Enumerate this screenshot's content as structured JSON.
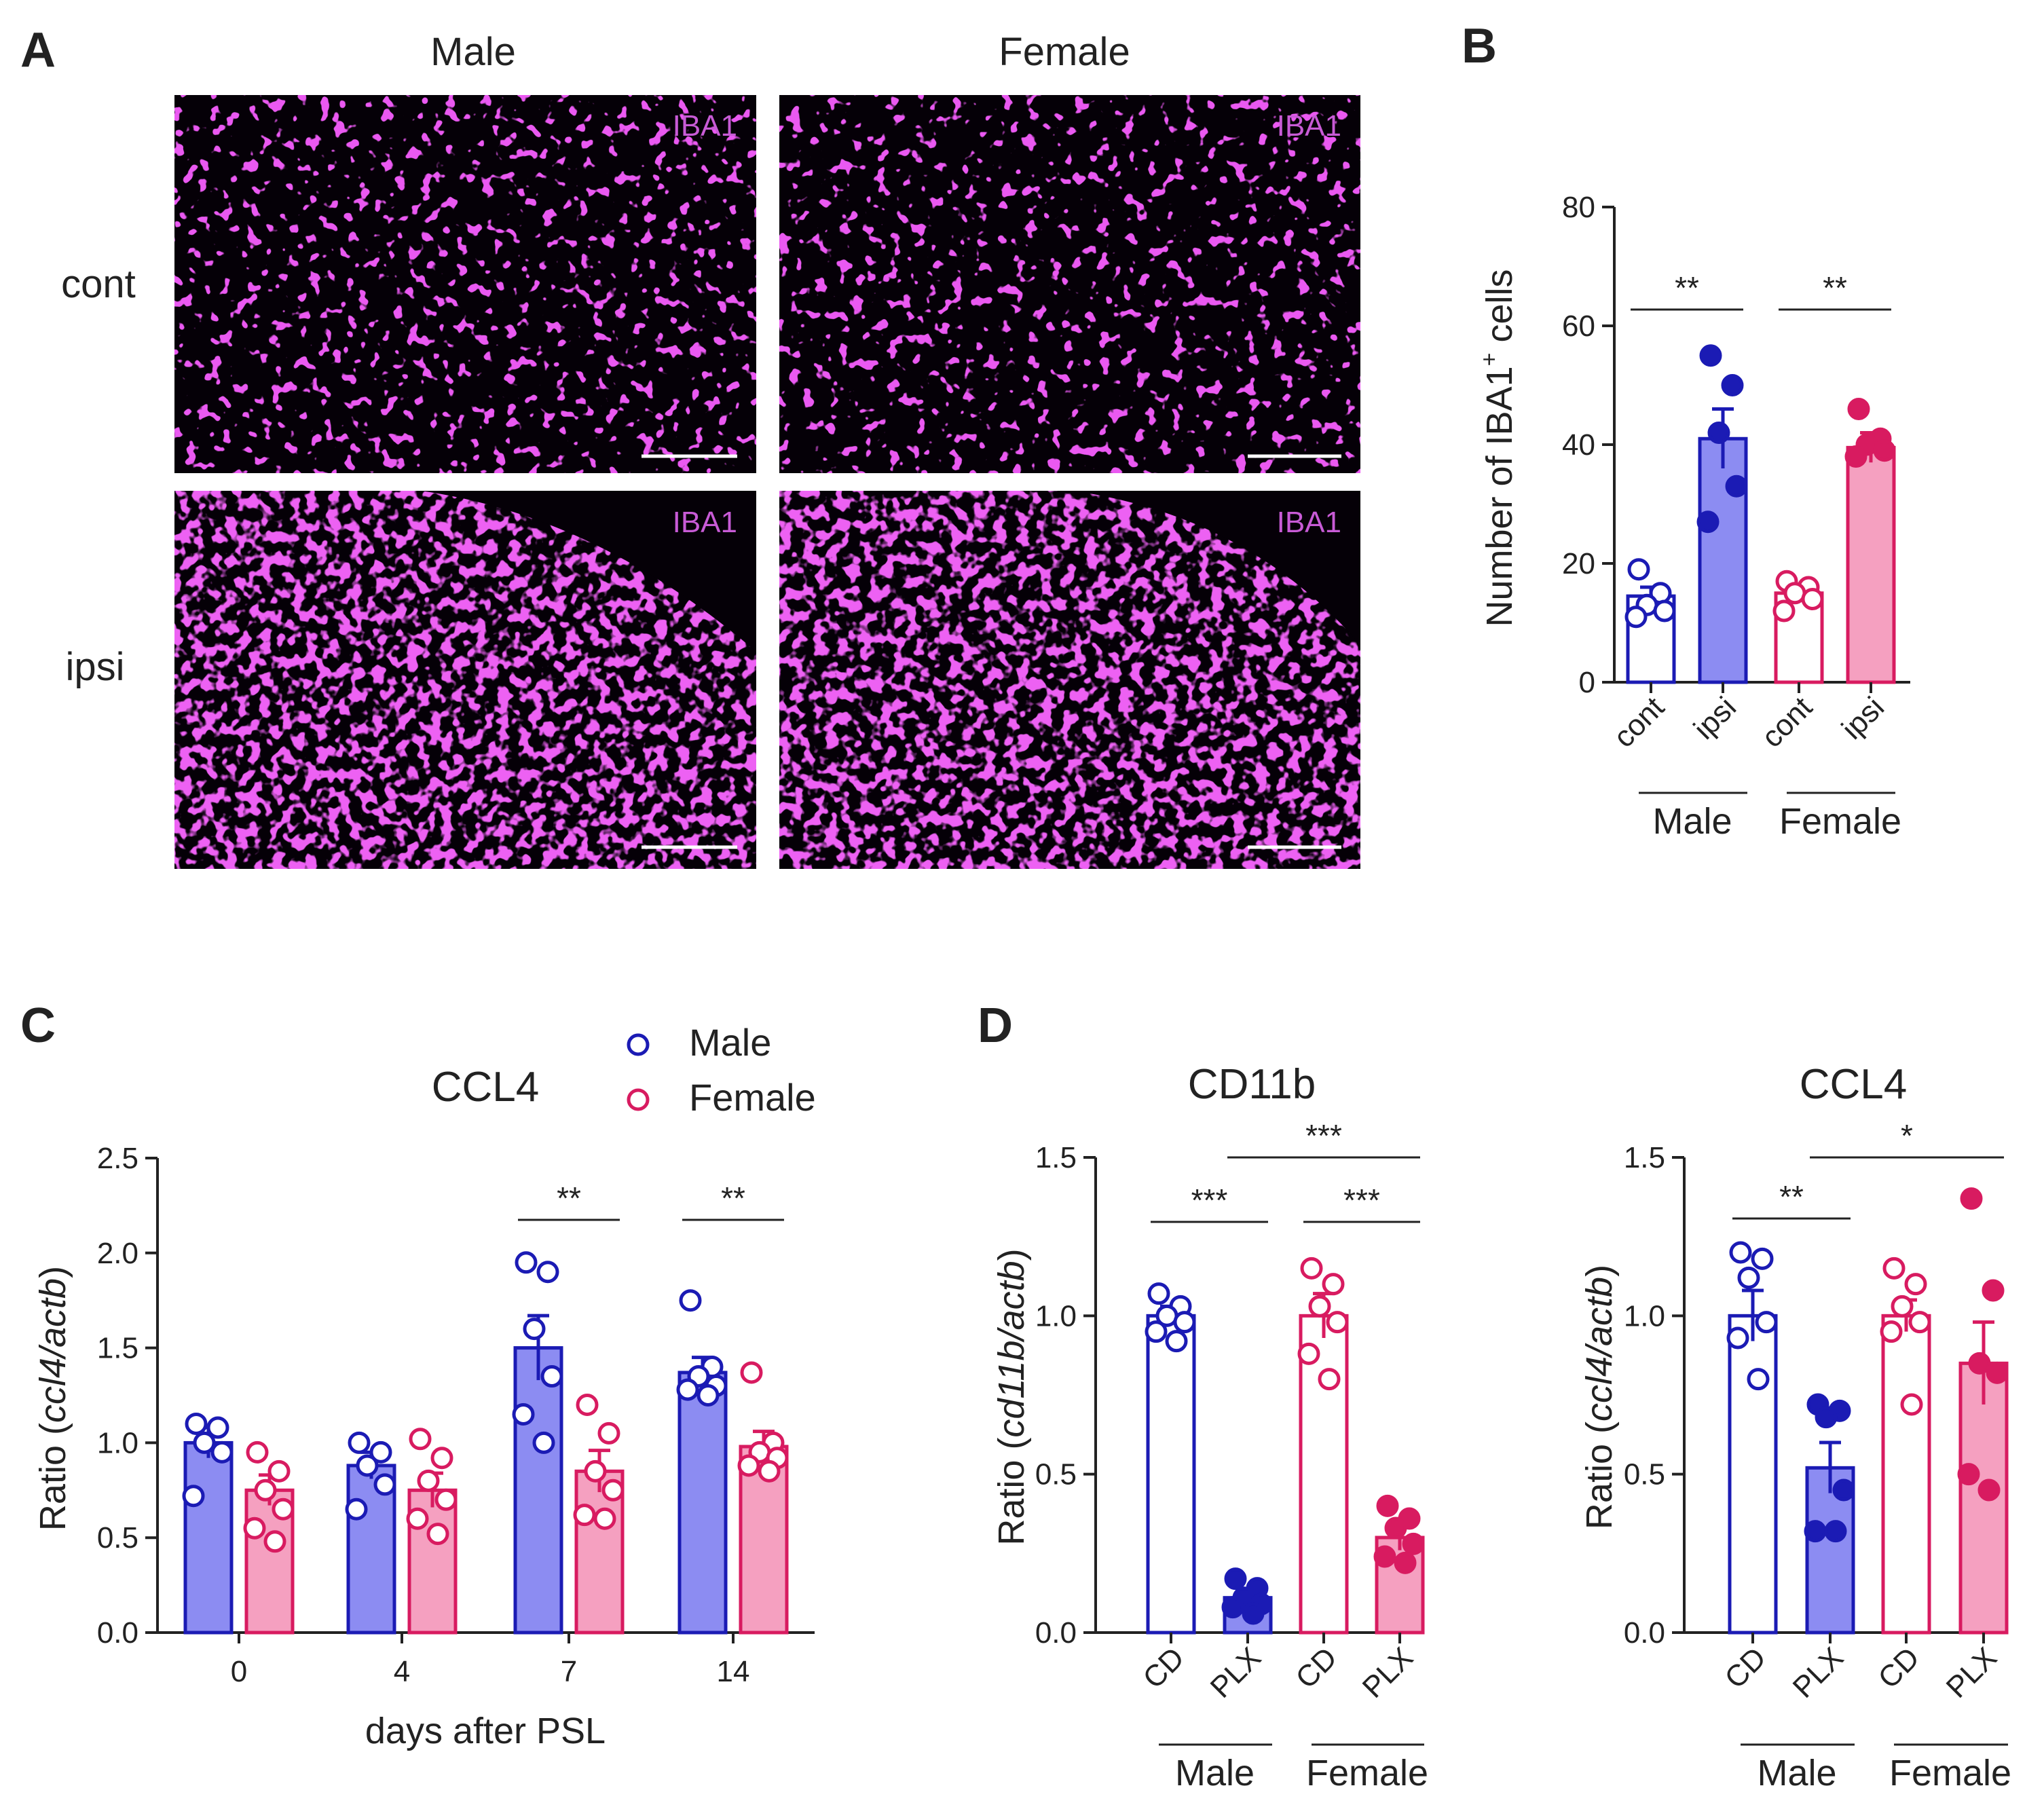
{
  "colors": {
    "male": "#1b1bb4",
    "male_fill": "#8c8cf2",
    "female": "#d81b60",
    "female_fill": "#f5a0c0",
    "image_bg": "#050007",
    "stain": "#c51fd8"
  },
  "panel_a": {
    "letter": "A",
    "columns": [
      "Male",
      "Female"
    ],
    "rows": [
      "cont",
      "ipsi"
    ],
    "stain_label": "IBA1"
  },
  "chart_data": [
    {
      "panel": "B",
      "type": "bar",
      "title": "",
      "ylabel": "Number of IBA1",
      "ylabel_sup": "+",
      "ylabel_suffix": " cells",
      "ylim": [
        0,
        80
      ],
      "yticks": [
        "0",
        "20",
        "40",
        "60",
        "80"
      ],
      "categories": [
        "cont",
        "ipsi",
        "cont",
        "ipsi"
      ],
      "groups": [
        "Male",
        "Female"
      ],
      "values": [
        14.5,
        41,
        15,
        39.5
      ],
      "errors": [
        1.5,
        5,
        1.5,
        2.5
      ],
      "points": [
        [
          19,
          15,
          13,
          12,
          11
        ],
        [
          55,
          50,
          42,
          33,
          27
        ],
        [
          17,
          16,
          15,
          14,
          12
        ],
        [
          46,
          41,
          40,
          39,
          38
        ]
      ],
      "significance": [
        {
          "from": 0,
          "to": 1,
          "label": "**"
        },
        {
          "from": 2,
          "to": 3,
          "label": "**"
        }
      ]
    },
    {
      "panel": "C",
      "type": "bar",
      "title": "CCL4",
      "xlabel": "days after PSL",
      "ylabel_prefix": "Ratio (",
      "ylabel_italic": "ccl4/actb",
      "ylabel_suffix": ")",
      "ylim": [
        0,
        2.5
      ],
      "yticks": [
        "0.0",
        "0.5",
        "1.0",
        "1.5",
        "2.0",
        "2.5"
      ],
      "categories": [
        "0",
        "4",
        "7",
        "14"
      ],
      "legend": [
        "Male",
        "Female"
      ],
      "series": [
        {
          "name": "Male",
          "values": [
            1.0,
            0.88,
            1.5,
            1.37
          ],
          "errors": [
            0.08,
            0.07,
            0.17,
            0.08
          ],
          "points": [
            [
              1.1,
              1.08,
              1.0,
              0.95,
              0.72
            ],
            [
              1.0,
              0.95,
              0.88,
              0.78,
              0.65
            ],
            [
              1.95,
              1.9,
              1.6,
              1.35,
              1.15,
              1.0
            ],
            [
              1.75,
              1.4,
              1.35,
              1.3,
              1.28,
              1.25
            ]
          ]
        },
        {
          "name": "Female",
          "values": [
            0.75,
            0.75,
            0.85,
            0.98
          ],
          "errors": [
            0.08,
            0.09,
            0.11,
            0.08
          ],
          "points": [
            [
              0.95,
              0.85,
              0.75,
              0.65,
              0.55,
              0.48
            ],
            [
              1.02,
              0.92,
              0.8,
              0.7,
              0.6,
              0.52
            ],
            [
              1.2,
              1.05,
              0.85,
              0.75,
              0.62,
              0.6
            ],
            [
              1.37,
              1.0,
              0.95,
              0.92,
              0.88,
              0.85
            ]
          ]
        }
      ],
      "significance": [
        {
          "category": 2,
          "label": "**"
        },
        {
          "category": 3,
          "label": "**"
        }
      ]
    },
    {
      "panel": "D",
      "type": "bar",
      "title": "CD11b",
      "ylabel_prefix": "Ratio (",
      "ylabel_italic": "cd11b/actb",
      "ylabel_suffix": ")",
      "ylim": [
        0,
        1.5
      ],
      "yticks": [
        "0.0",
        "0.5",
        "1.0",
        "1.5"
      ],
      "categories": [
        "CD",
        "PLX",
        "CD",
        "PLX"
      ],
      "groups": [
        "Male",
        "Female"
      ],
      "values": [
        1.0,
        0.11,
        1.0,
        0.3
      ],
      "errors": [
        0.03,
        0.02,
        0.07,
        0.04
      ],
      "points": [
        [
          1.07,
          1.03,
          1.0,
          0.98,
          0.95,
          0.92
        ],
        [
          0.17,
          0.14,
          0.11,
          0.09,
          0.08,
          0.06
        ],
        [
          1.15,
          1.1,
          1.03,
          0.98,
          0.88,
          0.8
        ],
        [
          0.4,
          0.36,
          0.33,
          0.28,
          0.24,
          0.22
        ]
      ],
      "significance": [
        {
          "from": 0,
          "to": 1,
          "label": "***",
          "level": 0
        },
        {
          "from": 2,
          "to": 3,
          "label": "***",
          "level": 0
        },
        {
          "from": 1,
          "to": 3,
          "label": "***",
          "level": 1
        }
      ]
    },
    {
      "panel": "D",
      "type": "bar",
      "title": "CCL4",
      "ylabel_prefix": "Ratio (",
      "ylabel_italic": "ccl4/actb",
      "ylabel_suffix": ")",
      "ylim": [
        0,
        1.5
      ],
      "yticks": [
        "0.0",
        "0.5",
        "1.0",
        "1.5"
      ],
      "categories": [
        "CD",
        "PLX",
        "CD",
        "PLX"
      ],
      "groups": [
        "Male",
        "Female"
      ],
      "values": [
        1.0,
        0.52,
        1.0,
        0.85
      ],
      "errors": [
        0.08,
        0.08,
        0.05,
        0.13
      ],
      "points": [
        [
          1.2,
          1.18,
          1.12,
          0.98,
          0.93,
          0.8
        ],
        [
          0.72,
          0.7,
          0.68,
          0.45,
          0.32,
          0.32
        ],
        [
          1.15,
          1.1,
          1.03,
          0.98,
          0.95,
          0.72
        ],
        [
          1.37,
          1.08,
          0.85,
          0.82,
          0.5,
          0.45
        ]
      ],
      "significance": [
        {
          "from": 0,
          "to": 1,
          "label": "**",
          "level": 0
        },
        {
          "from": 1,
          "to": 3,
          "label": "*",
          "level": 1
        }
      ]
    }
  ]
}
